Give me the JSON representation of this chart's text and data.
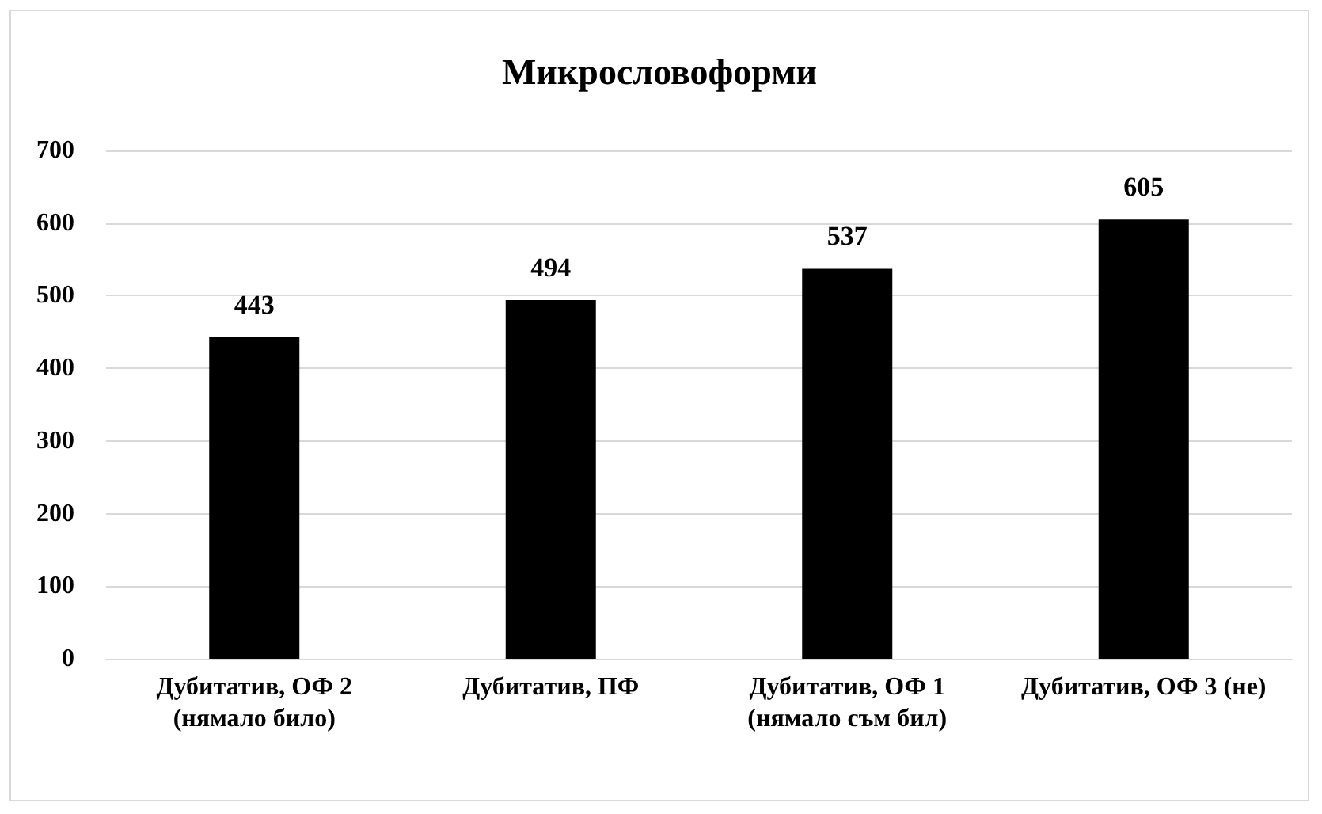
{
  "chart_data": {
    "type": "bar",
    "title": "Микрословоформи",
    "categories": [
      "Дубитатив, ОФ 2 (нямало било)",
      "Дубитатив, ПФ",
      "Дубитатив, ОФ 1 (нямало съм бил)",
      "Дубитатив, ОФ 3 (не)"
    ],
    "values": [
      443,
      494,
      537,
      605
    ],
    "color": "#000000",
    "ylim": [
      0,
      700
    ],
    "yticks": [
      0,
      100,
      200,
      300,
      400,
      500,
      600,
      700
    ],
    "grid": "y",
    "data_labels": true
  }
}
